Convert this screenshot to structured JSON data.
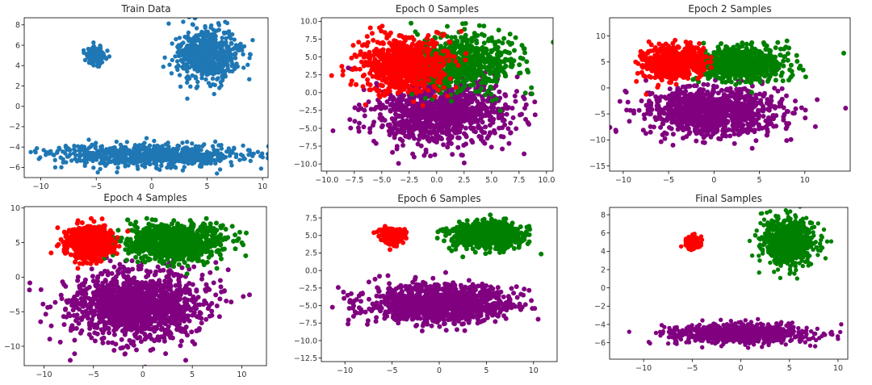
{
  "colors": {
    "blue": "#1f77b4",
    "red": "#ff0000",
    "green": "#008000",
    "purple": "#800080"
  },
  "chart_data": [
    {
      "type": "scatter",
      "title": "Train Data",
      "xticks": [
        -10,
        -5,
        0,
        5,
        10
      ],
      "yticks": [
        -6,
        -4,
        -2,
        0,
        2,
        4,
        6,
        8
      ],
      "xlim": [
        -11.5,
        10.5
      ],
      "ylim": [
        -7.0,
        8.7
      ],
      "series": [
        {
          "color": "blue",
          "clusters": [
            {
              "cx": -5.0,
              "cy": 5.0,
              "sx": 0.45,
              "sy": 0.42,
              "n": 120
            },
            {
              "cx": 5.0,
              "cy": 5.0,
              "sx": 1.4,
              "sy": 1.25,
              "n": 700
            },
            {
              "cx": 0.0,
              "cy": -4.8,
              "sx": 4.2,
              "sy": 0.55,
              "n": 800
            }
          ]
        }
      ]
    },
    {
      "type": "scatter",
      "title": "Epoch 0 Samples",
      "xticks": [
        -10.0,
        -7.5,
        -5.0,
        -2.5,
        0.0,
        2.5,
        5.0,
        7.5,
        10.0
      ],
      "yticks": [
        -10.0,
        -7.5,
        -5.0,
        -2.5,
        0.0,
        2.5,
        5.0,
        7.5,
        10.0
      ],
      "xlim": [
        -10.5,
        10.6
      ],
      "ylim": [
        -11.0,
        10.5
      ],
      "series": [
        {
          "color": "purple",
          "clusters": [
            {
              "cx": 0.3,
              "cy": -2.6,
              "sx": 3.0,
              "sy": 2.3,
              "n": 1100
            }
          ]
        },
        {
          "color": "green",
          "clusters": [
            {
              "cx": 2.2,
              "cy": 4.2,
              "sx": 2.3,
              "sy": 2.0,
              "n": 700
            }
          ]
        },
        {
          "color": "red",
          "clusters": [
            {
              "cx": -3.0,
              "cy": 3.8,
              "sx": 2.0,
              "sy": 1.9,
              "n": 700
            }
          ]
        }
      ]
    },
    {
      "type": "scatter",
      "title": "Epoch 2 Samples",
      "xticks": [
        -10,
        -5,
        0,
        5,
        10
      ],
      "yticks": [
        -15,
        -10,
        -5,
        0,
        5,
        10
      ],
      "xlim": [
        -11.5,
        15.0
      ],
      "ylim": [
        -16.0,
        13.5
      ],
      "series": [
        {
          "color": "purple",
          "clusters": [
            {
              "cx": 0.0,
              "cy": -4.5,
              "sx": 3.6,
              "sy": 2.3,
              "n": 1100
            }
          ]
        },
        {
          "color": "green",
          "clusters": [
            {
              "cx": 3.0,
              "cy": 4.5,
              "sx": 2.6,
              "sy": 1.6,
              "n": 700
            }
          ]
        },
        {
          "color": "red",
          "clusters": [
            {
              "cx": -4.5,
              "cy": 4.8,
              "sx": 1.6,
              "sy": 1.5,
              "n": 650
            }
          ]
        }
      ]
    },
    {
      "type": "scatter",
      "title": "Epoch 4 Samples",
      "xticks": [
        -10,
        -5,
        0,
        5,
        10
      ],
      "yticks": [
        -10,
        -5,
        0,
        5,
        10
      ],
      "xlim": [
        -12.0,
        12.5
      ],
      "ylim": [
        -12.8,
        10.2
      ],
      "series": [
        {
          "color": "purple",
          "clusters": [
            {
              "cx": -0.5,
              "cy": -4.0,
              "sx": 3.4,
              "sy": 2.5,
              "n": 1300
            }
          ]
        },
        {
          "color": "green",
          "clusters": [
            {
              "cx": 3.0,
              "cy": 5.0,
              "sx": 2.6,
              "sy": 1.3,
              "n": 900
            }
          ]
        },
        {
          "color": "red",
          "clusters": [
            {
              "cx": -5.5,
              "cy": 5.0,
              "sx": 1.1,
              "sy": 1.1,
              "n": 700
            }
          ]
        }
      ]
    },
    {
      "type": "scatter",
      "title": "Epoch 6 Samples",
      "xticks": [
        -10,
        -5,
        0,
        5,
        10
      ],
      "yticks": [
        -12.5,
        -10.0,
        -7.5,
        -5.0,
        -2.5,
        0.0,
        2.5,
        5.0,
        7.5
      ],
      "xlim": [
        -12.5,
        12.5
      ],
      "ylim": [
        -13.0,
        9.0
      ],
      "series": [
        {
          "color": "purple",
          "clusters": [
            {
              "cx": 0.0,
              "cy": -4.7,
              "sx": 3.8,
              "sy": 1.3,
              "n": 1200
            }
          ]
        },
        {
          "color": "green",
          "clusters": [
            {
              "cx": 5.0,
              "cy": 5.0,
              "sx": 1.9,
              "sy": 0.9,
              "n": 800
            }
          ]
        },
        {
          "color": "red",
          "clusters": [
            {
              "cx": -5.0,
              "cy": 5.0,
              "sx": 0.5,
              "sy": 0.55,
              "n": 300
            }
          ]
        }
      ]
    },
    {
      "type": "scatter",
      "title": "Final Samples",
      "xticks": [
        -10,
        -5,
        0,
        5,
        10
      ],
      "yticks": [
        -6,
        -4,
        -2,
        0,
        2,
        4,
        6,
        8
      ],
      "xlim": [
        -13.5,
        11.0
      ],
      "ylim": [
        -7.8,
        8.8
      ],
      "series": [
        {
          "color": "purple",
          "clusters": [
            {
              "cx": 0.0,
              "cy": -5.0,
              "sx": 3.5,
              "sy": 0.5,
              "n": 900
            }
          ]
        },
        {
          "color": "green",
          "clusters": [
            {
              "cx": 5.0,
              "cy": 5.0,
              "sx": 1.3,
              "sy": 1.25,
              "n": 800
            }
          ]
        },
        {
          "color": "red",
          "clusters": [
            {
              "cx": -5.0,
              "cy": 5.0,
              "sx": 0.4,
              "sy": 0.4,
              "n": 150
            }
          ]
        }
      ]
    }
  ]
}
